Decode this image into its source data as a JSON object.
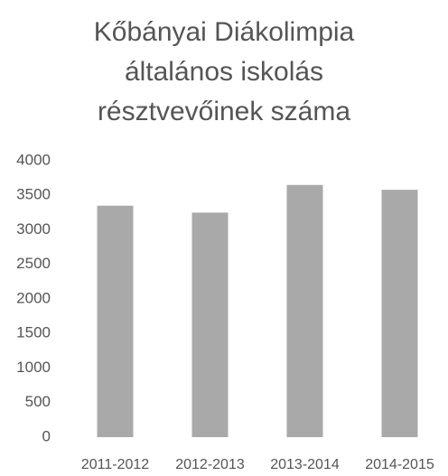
{
  "chart_data": {
    "type": "bar",
    "title": "Kőbányai Diákolimpia általános iskolás résztvevőinek száma",
    "categories": [
      "2011-2012",
      "2012-2013",
      "2013-2014",
      "2014-2015"
    ],
    "values": [
      3350,
      3250,
      3650,
      3580
    ],
    "color": "#a9a9a9",
    "ylim": [
      0,
      4000
    ],
    "yticks": [
      0,
      500,
      1000,
      1500,
      2000,
      2500,
      3000,
      3500,
      4000
    ],
    "grid": false
  }
}
